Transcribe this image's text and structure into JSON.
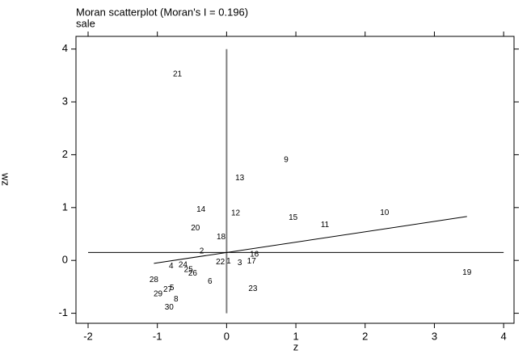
{
  "chart_data": {
    "type": "scatter",
    "title": "Moran scatterplot (Moran's I = 0.196)",
    "subtitle": "sale",
    "x_label": "z",
    "y_label": "wz",
    "point_labels": [
      "21",
      "9",
      "13",
      "14",
      "12",
      "15",
      "10",
      "11",
      "20",
      "18",
      "2",
      "16",
      "22",
      "1",
      "3",
      "17",
      "4",
      "24",
      "25",
      "26",
      "19",
      "28",
      "6",
      "5",
      "27",
      "23",
      "29",
      "8",
      "30"
    ],
    "x": [
      -0.71,
      0.86,
      0.19,
      -0.37,
      0.13,
      0.96,
      2.28,
      1.42,
      -0.45,
      -0.08,
      -0.36,
      0.4,
      -0.09,
      0.03,
      0.19,
      0.36,
      -0.8,
      -0.63,
      -0.55,
      -0.49,
      3.47,
      -1.05,
      -0.24,
      -0.79,
      -0.85,
      0.38,
      -0.99,
      -0.73,
      -0.83
    ],
    "values": [
      3.52,
      1.9,
      1.56,
      0.96,
      0.89,
      0.81,
      0.9,
      0.67,
      0.61,
      0.44,
      0.17,
      0.11,
      -0.03,
      -0.02,
      -0.05,
      -0.02,
      -0.11,
      -0.09,
      -0.18,
      -0.25,
      -0.23,
      -0.37,
      -0.4,
      -0.52,
      -0.55,
      -0.54,
      -0.64,
      -0.74,
      -0.89
    ],
    "xlim": [
      -2.175,
      4.15
    ],
    "ylim": [
      -1.19,
      4.24
    ],
    "xticks": [
      -2,
      -1,
      0,
      1,
      2,
      3,
      4
    ],
    "yticks": [
      -1,
      0,
      1,
      2,
      3,
      4
    ],
    "mean_x": 0,
    "mean_y": 0.15,
    "fit_line": {
      "slope": 0.196,
      "intercept": 0.15
    },
    "color": "#000000",
    "mean_x_color": "#808080"
  }
}
